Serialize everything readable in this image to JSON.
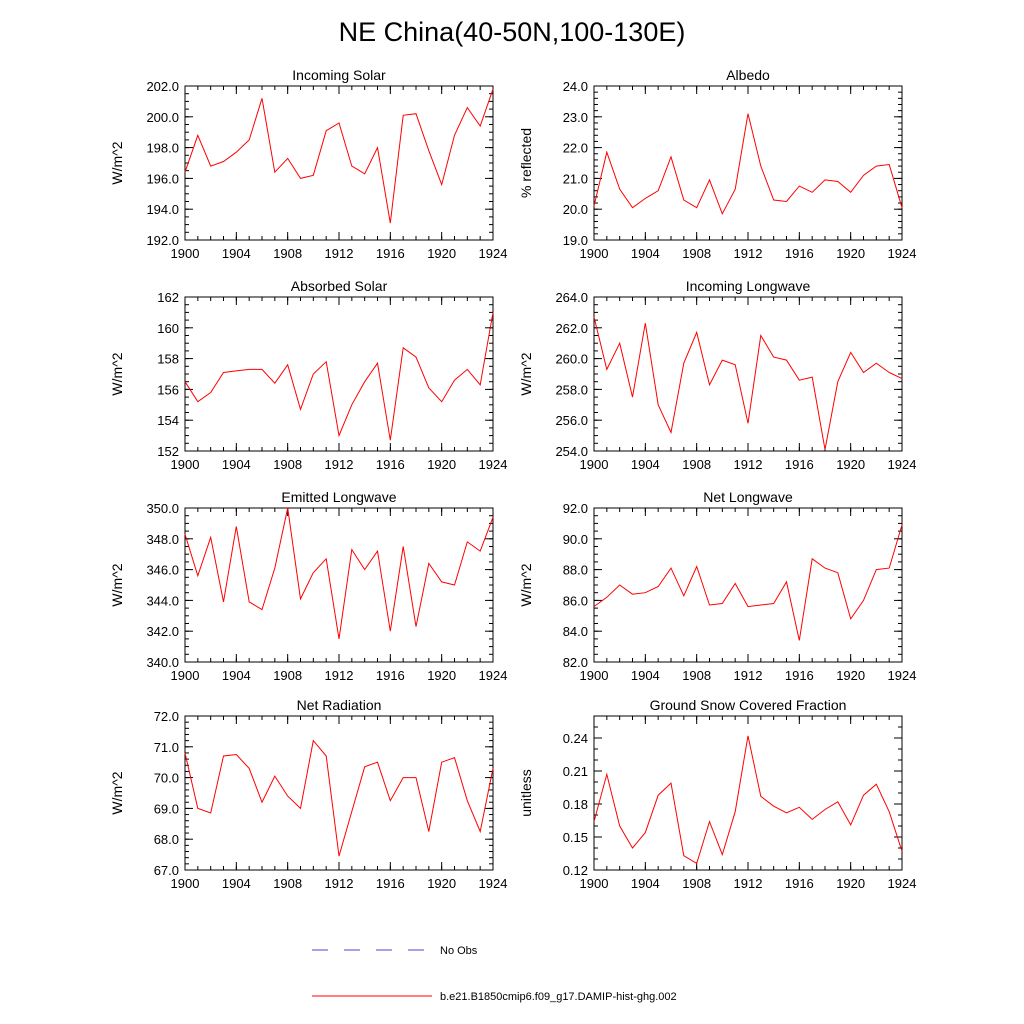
{
  "figure": {
    "title": "NE China(40-50N,100-130E)"
  },
  "legend": {
    "items": [
      {
        "label": "No Obs",
        "color": "#4a4acc",
        "style": "dashed"
      },
      {
        "label": "b.e21.B1850cmip6.f09_g17.DAMIP-hist-ghg.002",
        "color": "#ff0000",
        "style": "solid"
      }
    ]
  },
  "chart_data": [
    {
      "type": "line",
      "title": "Incoming Solar",
      "xlabel": "",
      "ylabel": "W/m^2",
      "xlim": [
        1900,
        1924
      ],
      "ylim": [
        192,
        202
      ],
      "xticks": [
        "1900",
        "1904",
        "1908",
        "1912",
        "1916",
        "1920",
        "1924"
      ],
      "yticks": [
        "192.0",
        "194.0",
        "196.0",
        "198.0",
        "200.0",
        "202.0"
      ],
      "yticks_values": [
        192,
        194,
        196,
        198,
        200,
        202
      ],
      "yminor": 0.5,
      "x": [
        1900,
        1901,
        1902,
        1903,
        1904,
        1905,
        1906,
        1907,
        1908,
        1909,
        1910,
        1911,
        1912,
        1913,
        1914,
        1915,
        1916,
        1917,
        1918,
        1919,
        1920,
        1921,
        1922,
        1923,
        1924
      ],
      "series": [
        {
          "color": "#ff0000",
          "values": [
            196.4,
            198.8,
            196.8,
            197.1,
            197.7,
            198.5,
            201.2,
            196.4,
            197.3,
            196.0,
            196.2,
            199.1,
            199.6,
            196.8,
            196.3,
            198.0,
            193.1,
            200.1,
            200.2,
            197.8,
            195.6,
            198.8,
            200.6,
            199.4,
            201.8
          ]
        }
      ]
    },
    {
      "type": "line",
      "title": "Albedo",
      "xlabel": "",
      "ylabel": "% reflected",
      "xlim": [
        1900,
        1924
      ],
      "ylim": [
        19,
        24
      ],
      "xticks": [
        "1900",
        "1904",
        "1908",
        "1912",
        "1916",
        "1920",
        "1924"
      ],
      "yticks": [
        "19.0",
        "20.0",
        "21.0",
        "22.0",
        "23.0",
        "24.0"
      ],
      "yticks_values": [
        19,
        20,
        21,
        22,
        23,
        24
      ],
      "yminor": 0.2,
      "x": [
        1900,
        1901,
        1902,
        1903,
        1904,
        1905,
        1906,
        1907,
        1908,
        1909,
        1910,
        1911,
        1912,
        1913,
        1914,
        1915,
        1916,
        1917,
        1918,
        1919,
        1920,
        1921,
        1922,
        1923,
        1924
      ],
      "series": [
        {
          "color": "#ff0000",
          "values": [
            20.1,
            21.85,
            20.65,
            20.05,
            20.35,
            20.6,
            21.7,
            20.3,
            20.05,
            20.95,
            19.85,
            20.65,
            23.1,
            21.4,
            20.3,
            20.25,
            20.75,
            20.55,
            20.95,
            20.9,
            20.55,
            21.1,
            21.4,
            21.45,
            20.05
          ]
        }
      ]
    },
    {
      "type": "line",
      "title": "Absorbed Solar",
      "xlabel": "",
      "ylabel": "W/m^2",
      "xlim": [
        1900,
        1924
      ],
      "ylim": [
        152,
        162
      ],
      "xticks": [
        "1900",
        "1904",
        "1908",
        "1912",
        "1916",
        "1920",
        "1924"
      ],
      "yticks": [
        "152",
        "154",
        "156",
        "158",
        "160",
        "162"
      ],
      "yticks_values": [
        152,
        154,
        156,
        158,
        160,
        162
      ],
      "yminor": 0.5,
      "x": [
        1900,
        1901,
        1902,
        1903,
        1904,
        1905,
        1906,
        1907,
        1908,
        1909,
        1910,
        1911,
        1912,
        1913,
        1914,
        1915,
        1916,
        1917,
        1918,
        1919,
        1920,
        1921,
        1922,
        1923,
        1924
      ],
      "series": [
        {
          "color": "#ff0000",
          "values": [
            156.5,
            155.2,
            155.8,
            157.1,
            157.2,
            157.3,
            157.3,
            156.4,
            157.6,
            154.7,
            157.0,
            157.8,
            153.0,
            155.0,
            156.5,
            157.7,
            152.7,
            158.7,
            158.1,
            156.1,
            155.2,
            156.6,
            157.3,
            156.3,
            161.0
          ]
        }
      ]
    },
    {
      "type": "line",
      "title": "Incoming Longwave",
      "xlabel": "",
      "ylabel": "W/m^2",
      "xlim": [
        1900,
        1924
      ],
      "ylim": [
        254,
        264
      ],
      "xticks": [
        "1900",
        "1904",
        "1908",
        "1912",
        "1916",
        "1920",
        "1924"
      ],
      "yticks": [
        "254.0",
        "256.0",
        "258.0",
        "260.0",
        "262.0",
        "264.0"
      ],
      "yticks_values": [
        254,
        256,
        258,
        260,
        262,
        264
      ],
      "yminor": 0.5,
      "x": [
        1900,
        1901,
        1902,
        1903,
        1904,
        1905,
        1906,
        1907,
        1908,
        1909,
        1910,
        1911,
        1912,
        1913,
        1914,
        1915,
        1916,
        1917,
        1918,
        1919,
        1920,
        1921,
        1922,
        1923,
        1924
      ],
      "series": [
        {
          "color": "#ff0000",
          "values": [
            262.7,
            259.3,
            261.0,
            257.5,
            262.3,
            257.0,
            255.2,
            259.7,
            261.7,
            258.3,
            259.9,
            259.6,
            255.8,
            261.5,
            260.1,
            259.9,
            258.6,
            258.8,
            254.1,
            258.5,
            260.4,
            259.1,
            259.7,
            259.1,
            258.7
          ]
        }
      ]
    },
    {
      "type": "line",
      "title": "Emitted Longwave",
      "xlabel": "",
      "ylabel": "W/m^2",
      "xlim": [
        1900,
        1924
      ],
      "ylim": [
        340,
        350
      ],
      "xticks": [
        "1900",
        "1904",
        "1908",
        "1912",
        "1916",
        "1920",
        "1924"
      ],
      "yticks": [
        "340.0",
        "342.0",
        "344.0",
        "346.0",
        "348.0",
        "350.0"
      ],
      "yticks_values": [
        340,
        342,
        344,
        346,
        348,
        350
      ],
      "yminor": 0.5,
      "x": [
        1900,
        1901,
        1902,
        1903,
        1904,
        1905,
        1906,
        1907,
        1908,
        1909,
        1910,
        1911,
        1912,
        1913,
        1914,
        1915,
        1916,
        1917,
        1918,
        1919,
        1920,
        1921,
        1922,
        1923,
        1924
      ],
      "series": [
        {
          "color": "#ff0000",
          "values": [
            348.3,
            345.6,
            348.1,
            343.9,
            348.8,
            343.9,
            343.4,
            346.1,
            350.0,
            344.1,
            345.8,
            346.7,
            341.5,
            347.3,
            346.0,
            347.2,
            342.0,
            347.5,
            342.3,
            346.4,
            345.2,
            345.0,
            347.8,
            347.2,
            349.4
          ]
        }
      ]
    },
    {
      "type": "line",
      "title": "Net Longwave",
      "xlabel": "",
      "ylabel": "W/m^2",
      "xlim": [
        1900,
        1924
      ],
      "ylim": [
        82,
        92
      ],
      "xticks": [
        "1900",
        "1904",
        "1908",
        "1912",
        "1916",
        "1920",
        "1924"
      ],
      "yticks": [
        "82.0",
        "84.0",
        "86.0",
        "88.0",
        "90.0",
        "92.0"
      ],
      "yticks_values": [
        82,
        84,
        86,
        88,
        90,
        92
      ],
      "yminor": 0.5,
      "x": [
        1900,
        1901,
        1902,
        1903,
        1904,
        1905,
        1906,
        1907,
        1908,
        1909,
        1910,
        1911,
        1912,
        1913,
        1914,
        1915,
        1916,
        1917,
        1918,
        1919,
        1920,
        1921,
        1922,
        1923,
        1924
      ],
      "series": [
        {
          "color": "#ff0000",
          "values": [
            85.6,
            86.2,
            87.0,
            86.4,
            86.5,
            86.9,
            88.1,
            86.3,
            88.2,
            85.7,
            85.8,
            87.1,
            85.6,
            85.7,
            85.8,
            87.2,
            83.4,
            88.7,
            88.1,
            87.8,
            84.8,
            86.0,
            88.0,
            88.1,
            90.9
          ]
        }
      ]
    },
    {
      "type": "line",
      "title": "Net Radiation",
      "xlabel": "",
      "ylabel": "W/m^2",
      "xlim": [
        1900,
        1924
      ],
      "ylim": [
        67,
        72
      ],
      "xticks": [
        "1900",
        "1904",
        "1908",
        "1912",
        "1916",
        "1920",
        "1924"
      ],
      "yticks": [
        "67.0",
        "68.0",
        "69.0",
        "70.0",
        "71.0",
        "72.0"
      ],
      "yticks_values": [
        67,
        68,
        69,
        70,
        71,
        72
      ],
      "yminor": 0.2,
      "x": [
        1900,
        1901,
        1902,
        1903,
        1904,
        1905,
        1906,
        1907,
        1908,
        1909,
        1910,
        1911,
        1912,
        1913,
        1914,
        1915,
        1916,
        1917,
        1918,
        1919,
        1920,
        1921,
        1922,
        1923,
        1924
      ],
      "series": [
        {
          "color": "#ff0000",
          "values": [
            70.8,
            69.0,
            68.85,
            70.7,
            70.75,
            70.3,
            69.2,
            70.05,
            69.4,
            69.0,
            71.2,
            70.7,
            67.45,
            68.9,
            70.35,
            70.5,
            69.25,
            70.0,
            70.0,
            68.25,
            70.5,
            70.65,
            69.25,
            68.25,
            70.3
          ]
        }
      ]
    },
    {
      "type": "line",
      "title": "Ground Snow Covered Fraction",
      "xlabel": "",
      "ylabel": "unitless",
      "xlim": [
        1900,
        1924
      ],
      "ylim": [
        0.12,
        0.26
      ],
      "xticks": [
        "1900",
        "1904",
        "1908",
        "1912",
        "1916",
        "1920",
        "1924"
      ],
      "yticks": [
        "0.12",
        "0.15",
        "0.18",
        "0.21",
        "0.24"
      ],
      "yticks_values": [
        0.12,
        0.15,
        0.18,
        0.21,
        0.24
      ],
      "yminor": 0.01,
      "x": [
        1900,
        1901,
        1902,
        1903,
        1904,
        1905,
        1906,
        1907,
        1908,
        1909,
        1910,
        1911,
        1912,
        1913,
        1914,
        1915,
        1916,
        1917,
        1918,
        1919,
        1920,
        1921,
        1922,
        1923,
        1924
      ],
      "series": [
        {
          "color": "#ff0000",
          "values": [
            0.164,
            0.207,
            0.16,
            0.14,
            0.154,
            0.188,
            0.199,
            0.133,
            0.126,
            0.164,
            0.134,
            0.173,
            0.242,
            0.187,
            0.178,
            0.172,
            0.177,
            0.166,
            0.175,
            0.182,
            0.161,
            0.188,
            0.198,
            0.173,
            0.137
          ]
        }
      ]
    }
  ]
}
